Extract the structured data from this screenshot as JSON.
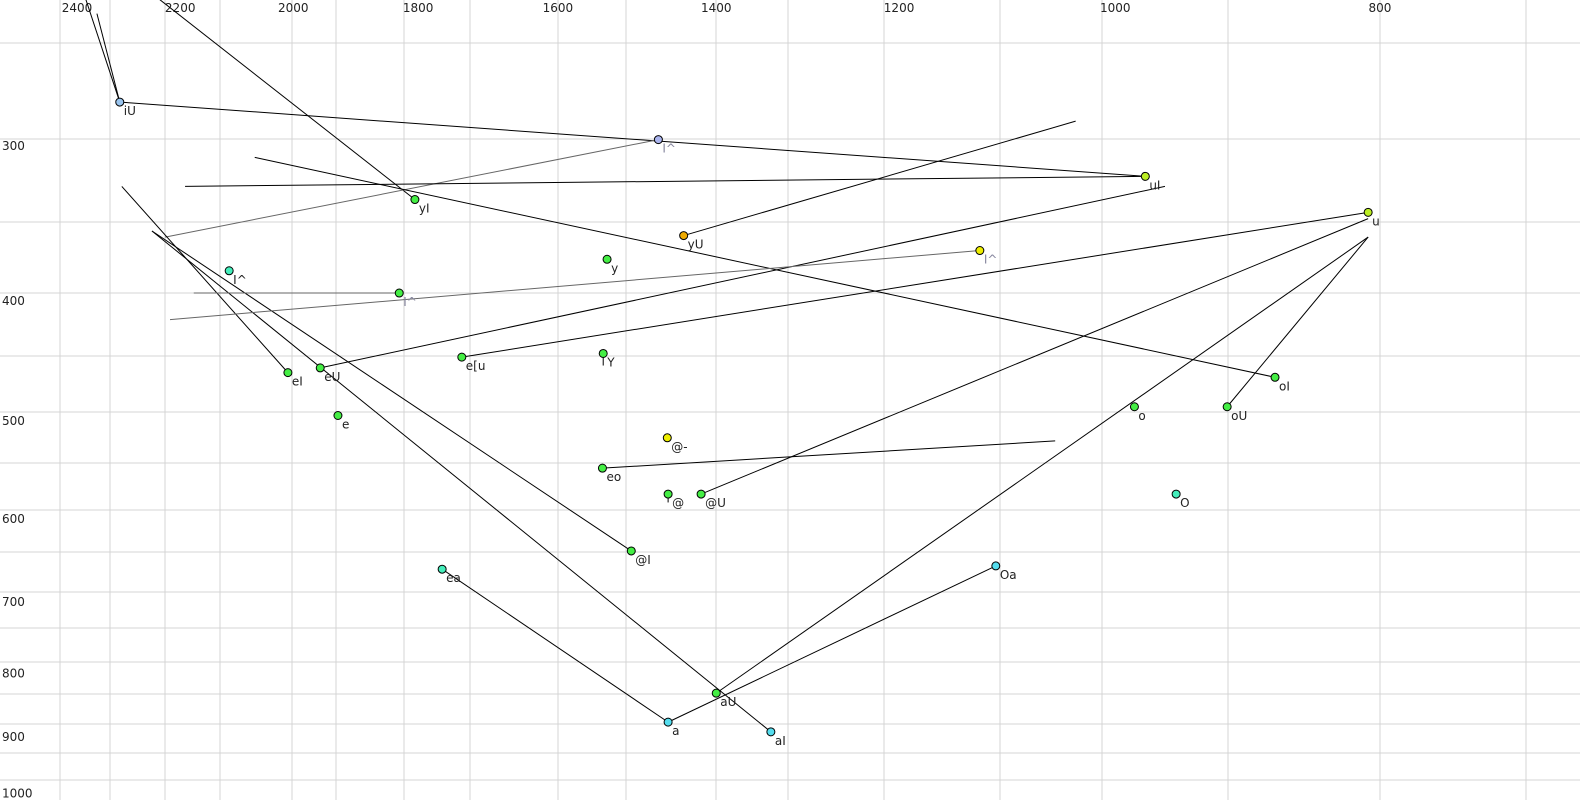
{
  "chart_data": {
    "type": "scatter",
    "title": "",
    "xlabel": "",
    "ylabel": "",
    "x_axis": {
      "quantity": "F2",
      "scale": "log",
      "reversed": true,
      "range": [
        2500,
        680
      ],
      "position": "top",
      "ticks": [
        "2400",
        "2200",
        "2000",
        "1800",
        "1600",
        "1400",
        "1200",
        "1000",
        "800"
      ]
    },
    "y_axis": {
      "quantity": "F1",
      "scale": "log",
      "reversed": false,
      "range": [
        229,
        1000
      ],
      "position": "left",
      "ticks": [
        "300",
        "400",
        "500",
        "600",
        "700",
        "800",
        "900",
        "1000"
      ]
    },
    "grid": true,
    "colors": {
      "green": "#44ee44",
      "cyan": "#55ddee",
      "yellow": "#eeee00",
      "lime": "#bbee22",
      "orange": "#eeaa00",
      "lavender": "#aab4ee",
      "lightblue": "#99c4ee",
      "teal": "#44eebb",
      "line": "#000000",
      "muted_line": "#666666",
      "grid": "#d4d4d4"
    },
    "points": [
      {
        "label": "iU",
        "f2": 2315,
        "f1": 277,
        "color": "lightblue"
      },
      {
        "label": "I^",
        "f2": 1470,
        "f1": 297,
        "color": "lavender",
        "muted": true
      },
      {
        "label": "uI",
        "f2": 975,
        "f1": 318,
        "color": "lime"
      },
      {
        "label": "yI",
        "f2": 1805,
        "f1": 332,
        "color": "green"
      },
      {
        "label": "u",
        "f2": 808,
        "f1": 340,
        "color": "lime"
      },
      {
        "label": "yU",
        "f2": 1439,
        "f1": 355,
        "color": "orange"
      },
      {
        "label": "I^",
        "f2": 1121,
        "f1": 365,
        "color": "yellow",
        "muted": true
      },
      {
        "label": "y",
        "f2": 1535,
        "f1": 371,
        "color": "green"
      },
      {
        "label": "I^",
        "f2": 2111,
        "f1": 379,
        "color": "teal"
      },
      {
        "label": "I^",
        "f2": 1829,
        "f1": 395,
        "color": "green",
        "muted": true
      },
      {
        "label": "e[u",
        "f2": 1735,
        "f1": 445,
        "color": "green"
      },
      {
        "label": "Y",
        "f2": 1540,
        "f1": 442,
        "color": "green"
      },
      {
        "label": "eU",
        "f2": 1955,
        "f1": 454,
        "color": "green"
      },
      {
        "label": "eI",
        "f2": 2009,
        "f1": 458,
        "color": "green"
      },
      {
        "label": "oI",
        "f2": 874,
        "f1": 462,
        "color": "green"
      },
      {
        "label": "o",
        "f2": 984,
        "f1": 488,
        "color": "green"
      },
      {
        "label": "oU",
        "f2": 910,
        "f1": 488,
        "color": "green"
      },
      {
        "label": "e",
        "f2": 1926,
        "f1": 496,
        "color": "green"
      },
      {
        "label": "@-",
        "f2": 1459,
        "f1": 517,
        "color": "yellow"
      },
      {
        "label": "eo",
        "f2": 1541,
        "f1": 547,
        "color": "green"
      },
      {
        "label": "@",
        "f2": 1458,
        "f1": 574,
        "color": "green"
      },
      {
        "label": "@U",
        "f2": 1418,
        "f1": 574,
        "color": "green"
      },
      {
        "label": "O",
        "f2": 950,
        "f1": 574,
        "color": "teal"
      },
      {
        "label": "@I",
        "f2": 1504,
        "f1": 638,
        "color": "green"
      },
      {
        "label": "Oa",
        "f2": 1106,
        "f1": 656,
        "color": "cyan"
      },
      {
        "label": "ea",
        "f2": 1764,
        "f1": 660,
        "color": "teal"
      },
      {
        "label": "aU",
        "f2": 1400,
        "f1": 831,
        "color": "green"
      },
      {
        "label": "a",
        "f2": 1458,
        "f1": 877,
        "color": "cyan"
      },
      {
        "label": "aI",
        "f2": 1337,
        "f1": 893,
        "color": "cyan"
      }
    ],
    "trajectories": [
      {
        "from": [
          2382,
          229
        ],
        "to": [
          2315,
          277
        ]
      },
      {
        "from": [
          2360,
          235
        ],
        "to": [
          2315,
          277
        ]
      },
      {
        "from": [
          2315,
          277
        ],
        "to": [
          975,
          318
        ]
      },
      {
        "from": [
          2238,
          229
        ],
        "to": [
          1805,
          332
        ]
      },
      {
        "from": [
          2228,
          356
        ],
        "to": [
          1470,
          297
        ],
        "muted": true
      },
      {
        "from": [
          2191,
          324
        ],
        "to": [
          975,
          318
        ]
      },
      {
        "from": [
          2066,
          307
        ],
        "to": [
          874,
          462
        ]
      },
      {
        "from": [
          1955,
          454
        ],
        "to": [
          959,
          324
        ]
      },
      {
        "from": [
          1034,
          287
        ],
        "to": [
          1439,
          355
        ]
      },
      {
        "from": [
          1735,
          445
        ],
        "to": [
          808,
          340
        ]
      },
      {
        "from": [
          1418,
          574
        ],
        "to": [
          808,
          344
        ]
      },
      {
        "from": [
          1400,
          831
        ],
        "to": [
          808,
          356
        ]
      },
      {
        "from": [
          910,
          488
        ],
        "to": [
          808,
          356
        ]
      },
      {
        "from": [
          2311,
          324
        ],
        "to": [
          2009,
          458
        ]
      },
      {
        "from": [
          2253,
          352
        ],
        "to": [
          1337,
          893
        ]
      },
      {
        "from": [
          2253,
          352
        ],
        "to": [
          1504,
          638
        ]
      },
      {
        "from": [
          2175,
          395
        ],
        "to": [
          1829,
          395
        ],
        "muted": true
      },
      {
        "from": [
          2219,
          415
        ],
        "to": [
          1121,
          365
        ],
        "muted": true
      },
      {
        "from": [
          1541,
          547
        ],
        "to": [
          1052,
          520
        ]
      },
      {
        "from": [
          1764,
          660
        ],
        "to": [
          1458,
          877
        ]
      },
      {
        "from": [
          1458,
          877
        ],
        "to": [
          1106,
          656
        ]
      },
      {
        "from": [
          1540,
          442
        ],
        "to": [
          1540,
          452
        ]
      },
      {
        "from": [
          1458,
          574
        ],
        "to": [
          1458,
          583
        ]
      }
    ]
  }
}
